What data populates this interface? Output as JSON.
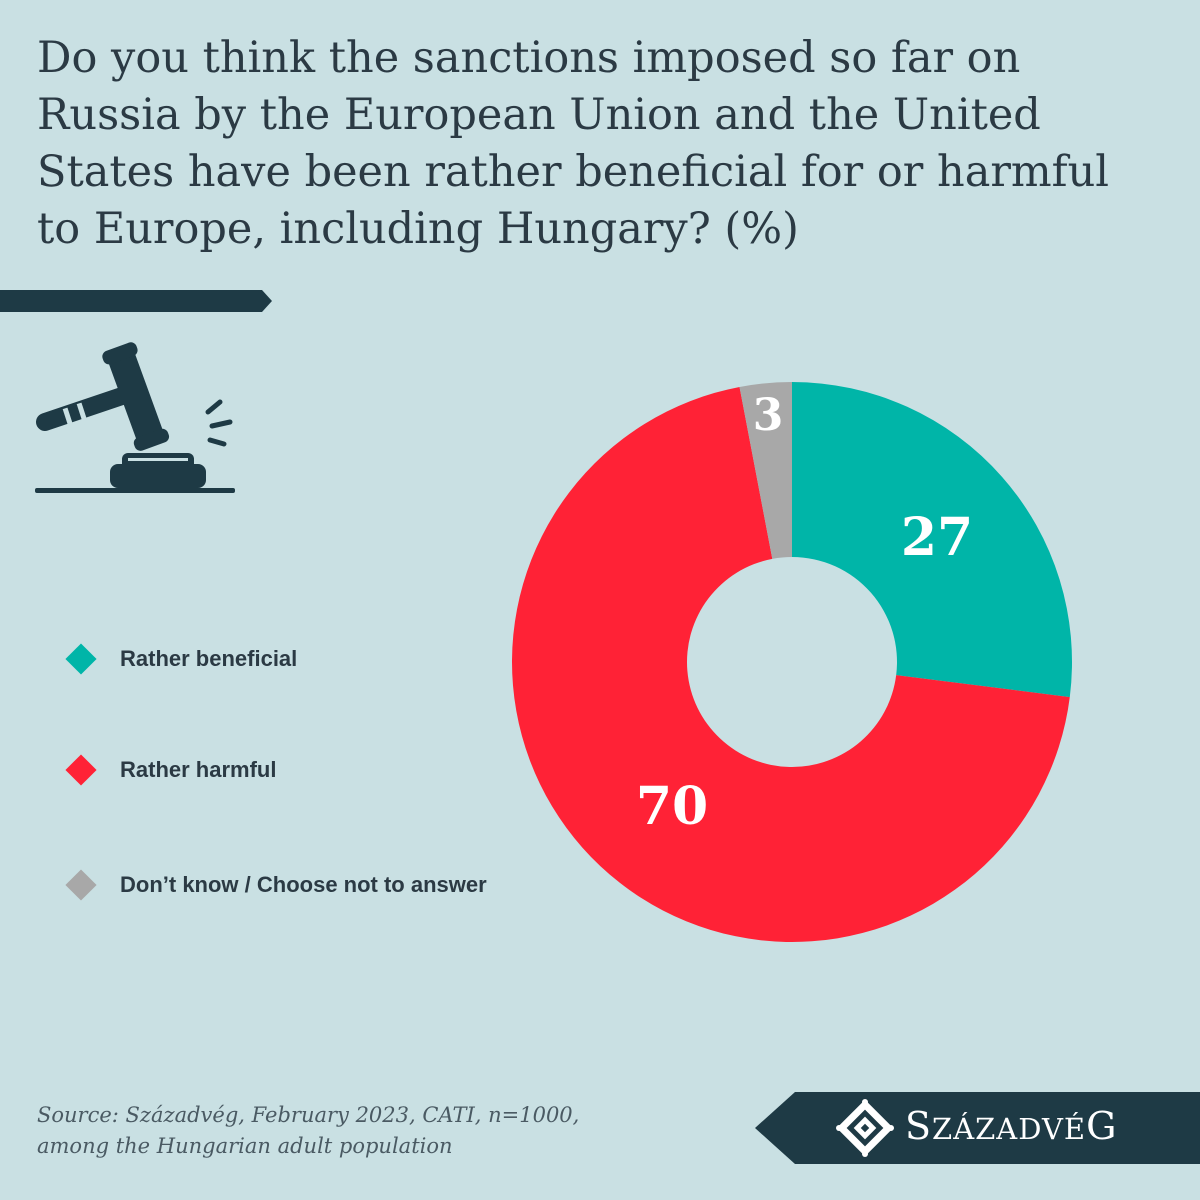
{
  "title": "Do you think the sanctions imposed so far on Russia by the European Union and the United States have been rather beneficial for or harmful to Europe, including Hungary? (%)",
  "chart_data": {
    "type": "pie",
    "categories": [
      "Rather beneficial",
      "Rather harmful",
      "Don’t know / Choose not to answer"
    ],
    "values": [
      27,
      70,
      3
    ],
    "colors": [
      "#00b5a8",
      "#ff2236",
      "#a8a8a8"
    ],
    "donut": true,
    "legend_placement": "left",
    "data_labels": [
      "27",
      "70",
      "3"
    ]
  },
  "source": {
    "line1": "Source: Századvég, February 2023, CATI, n=1000,",
    "line2": "among the Hungarian adult population"
  },
  "brand": {
    "name_prefix": "S",
    "name_middle": "ZÁZADVÉ",
    "name_suffix": "G"
  },
  "icons": {
    "gavel": "gavel-icon",
    "logo": "szazadveg-logo-icon"
  },
  "colors": {
    "background": "#c9e0e3",
    "dark": "#1e3a45",
    "text": "#2b3a44"
  }
}
